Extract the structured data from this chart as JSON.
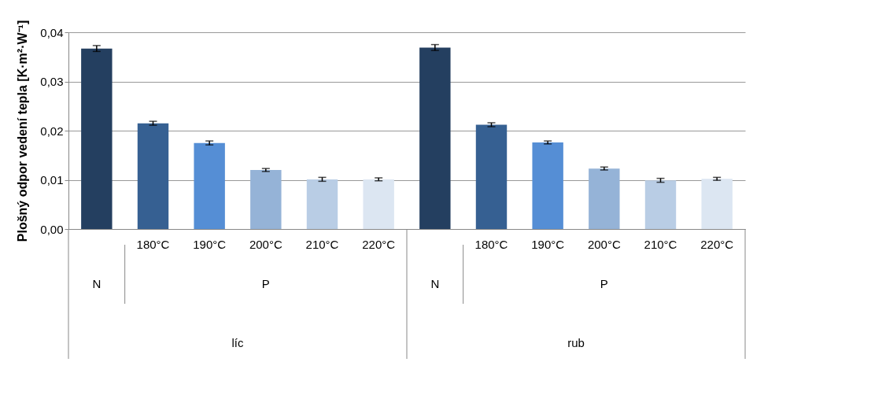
{
  "chart_data": {
    "type": "bar",
    "ylabel": "Plošný odpor vedení tepla [K·m²·W⁻¹]",
    "categories": [
      null,
      "180°C",
      "190°C",
      "200°C",
      "210°C",
      "220°C",
      null,
      "180°C",
      "190°C",
      "200°C",
      "210°C",
      "220°C"
    ],
    "values": [
      0.0367,
      0.0215,
      0.0175,
      0.012,
      0.0101,
      0.0101,
      0.0369,
      0.0212,
      0.0176,
      0.0123,
      0.0099,
      0.0102
    ],
    "errors": [
      0.0006,
      0.0004,
      0.0004,
      0.0003,
      0.0004,
      0.0003,
      0.0006,
      0.0004,
      0.0003,
      0.0003,
      0.0004,
      0.0003
    ],
    "colors": [
      "#243f60",
      "#366092",
      "#558ed5",
      "#95b3d7",
      "#b9cde5",
      "#dce6f2",
      "#243f60",
      "#366092",
      "#558ed5",
      "#95b3d7",
      "#b9cde5",
      "#dce6f2"
    ],
    "ylim": [
      0,
      0.04
    ],
    "yticks": [
      {
        "value": 0,
        "label": "0,00"
      },
      {
        "value": 0.01,
        "label": "0,01"
      },
      {
        "value": 0.02,
        "label": "0,02"
      },
      {
        "value": 0.03,
        "label": "0,03"
      },
      {
        "value": 0.04,
        "label": "0,04"
      }
    ],
    "grid": "y",
    "legend": false,
    "annotations": [
      "N",
      "P",
      "N",
      "P",
      "líc",
      "rub"
    ]
  }
}
